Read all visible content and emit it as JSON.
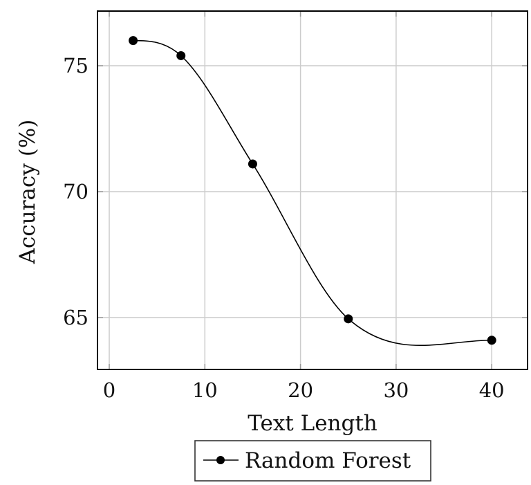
{
  "chart_data": {
    "type": "line",
    "title": "",
    "xlabel": "Text Length",
    "ylabel": "Accuracy (%)",
    "xlim": [
      -1,
      43
    ],
    "ylim": [
      63.1,
      77.2
    ],
    "xticks": [
      0,
      10,
      20,
      30,
      40
    ],
    "yticks": [
      65,
      70,
      75
    ],
    "grid": true,
    "legend_position": "below",
    "series": [
      {
        "name": "Random Forest",
        "color": "#000000",
        "marker": "circle",
        "smooth": true,
        "x": [
          2.5,
          7.5,
          15,
          25,
          40
        ],
        "y": [
          76.0,
          75.4,
          71.1,
          64.95,
          64.1
        ]
      }
    ]
  },
  "legend": {
    "label": "Random Forest"
  },
  "colors": {
    "grid": "#cccccc",
    "axis": "#000000",
    "line": "#000000"
  }
}
